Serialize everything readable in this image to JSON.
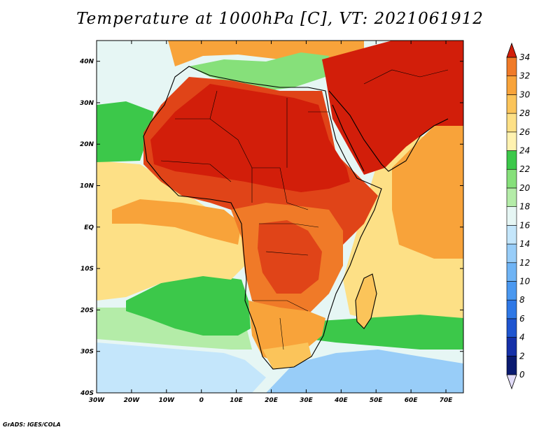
{
  "title": "Temperature at 1000hPa [C], VT: 2021061912",
  "credit": "GrADS: IGES/COLA",
  "map": {
    "variable": "Temperature at 1000hPa",
    "units": "C",
    "valid_time": "2021061912",
    "lon_range": [
      -30,
      75
    ],
    "lat_range": [
      -40,
      45
    ],
    "lat_ticks": [
      {
        "value": 40,
        "label": "40N"
      },
      {
        "value": 30,
        "label": "30N"
      },
      {
        "value": 20,
        "label": "20N"
      },
      {
        "value": 10,
        "label": "10N"
      },
      {
        "value": 0,
        "label": "EQ"
      },
      {
        "value": -10,
        "label": "10S"
      },
      {
        "value": -20,
        "label": "20S"
      },
      {
        "value": -30,
        "label": "30S"
      },
      {
        "value": -40,
        "label": "40S"
      }
    ],
    "lon_ticks": [
      {
        "value": -30,
        "label": "30W"
      },
      {
        "value": -20,
        "label": "20W"
      },
      {
        "value": -10,
        "label": "10W"
      },
      {
        "value": 0,
        "label": "0"
      },
      {
        "value": 10,
        "label": "10E"
      },
      {
        "value": 20,
        "label": "20E"
      },
      {
        "value": 30,
        "label": "30E"
      },
      {
        "value": 40,
        "label": "40E"
      },
      {
        "value": 50,
        "label": "50E"
      },
      {
        "value": 60,
        "label": "60E"
      },
      {
        "value": 70,
        "label": "70E"
      }
    ]
  },
  "colorbar": {
    "levels": [
      "0",
      "2",
      "4",
      "6",
      "8",
      "10",
      "12",
      "14",
      "16",
      "18",
      "20",
      "22",
      "24",
      "26",
      "28",
      "30",
      "32",
      "34"
    ],
    "colors": [
      "#0a1a70",
      "#1530a8",
      "#1f55d0",
      "#2f78e6",
      "#4a98f0",
      "#6fb4f5",
      "#98cdf8",
      "#c4e6fb",
      "#e6f6f4",
      "#b4eca8",
      "#86e07a",
      "#3cc84a",
      "#fff2b0",
      "#fde086",
      "#fbc45a",
      "#f8a33a",
      "#f07a28",
      "#e04418",
      "#d21e0a"
    ]
  },
  "regions": [
    {
      "id": "background-ocean",
      "color": "#e6f6f4"
    },
    {
      "id": "south-atlantic-cold",
      "color": "#c4e6fb"
    },
    {
      "id": "south-atlantic-green",
      "color": "#b4eca8"
    },
    {
      "id": "south-atlantic-band",
      "color": "#3cc84a"
    },
    {
      "id": "tropical-atlantic",
      "color": "#fde086"
    },
    {
      "id": "gulf-of-guinea",
      "color": "#f8a33a"
    },
    {
      "id": "indian-ocean",
      "color": "#fde086"
    },
    {
      "id": "arabian-sea",
      "color": "#f8a33a"
    },
    {
      "id": "south-indian-green",
      "color": "#3cc84a"
    },
    {
      "id": "north-atlantic-green",
      "color": "#3cc84a"
    },
    {
      "id": "north-africa-hot",
      "color": "#e04418"
    },
    {
      "id": "sahara-core",
      "color": "#d21e0a"
    },
    {
      "id": "middle-east-hot",
      "color": "#d21e0a"
    },
    {
      "id": "central-africa",
      "color": "#f07a28"
    },
    {
      "id": "congo-hot",
      "color": "#e04418"
    },
    {
      "id": "southern-africa",
      "color": "#f8a33a"
    },
    {
      "id": "south-africa-cool",
      "color": "#fbc45a"
    },
    {
      "id": "madagascar",
      "color": "#fbc45a"
    },
    {
      "id": "mediterranean",
      "color": "#86e07a"
    },
    {
      "id": "europe-warm",
      "color": "#f8a33a"
    },
    {
      "id": "far-south-blue",
      "color": "#98cdf8"
    }
  ]
}
